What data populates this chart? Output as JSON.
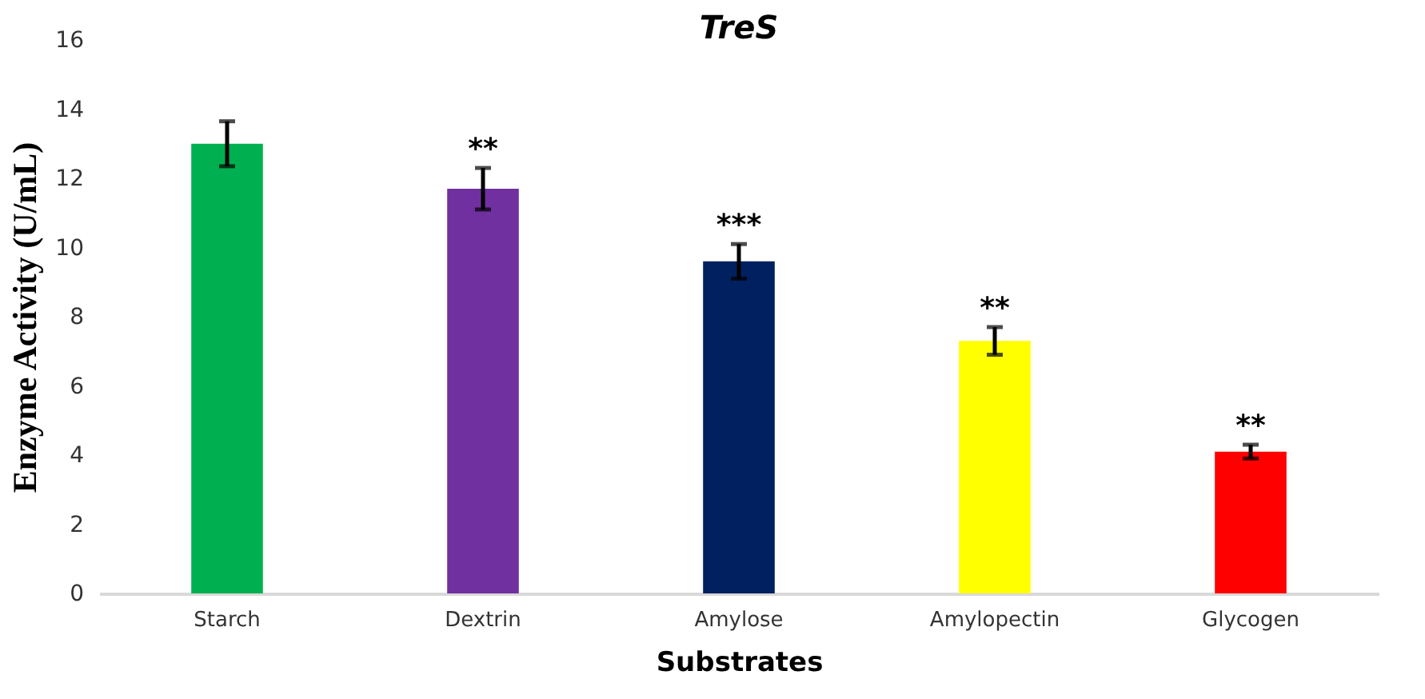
{
  "chart_data": {
    "type": "bar",
    "title": "TreS",
    "xlabel": "Substrates",
    "ylabel": "Enzyme Activity (U/mL)",
    "categories": [
      "Starch",
      "Dextrin",
      "Amylose",
      "Amylopectin",
      "Glycogen"
    ],
    "values": [
      13.0,
      11.7,
      9.6,
      7.3,
      4.1
    ],
    "errors": [
      0.65,
      0.6,
      0.5,
      0.4,
      0.2
    ],
    "colors": [
      "#00b050",
      "#7030a0",
      "#002060",
      "#ffff00",
      "#ff0000"
    ],
    "ylim": [
      0,
      16
    ],
    "yticks": [
      0,
      2,
      4,
      6,
      8,
      10,
      12,
      14,
      16
    ],
    "grid": false,
    "annotations": [
      {
        "text": "**",
        "x": "Dextrin",
        "y": 12.3
      },
      {
        "text": "***",
        "x": "Amylose",
        "y": 10.1
      },
      {
        "text": "**",
        "x": "Amylopectin",
        "y": 7.7
      },
      {
        "text": "**",
        "x": "Glycogen",
        "y": 4.3
      }
    ]
  }
}
